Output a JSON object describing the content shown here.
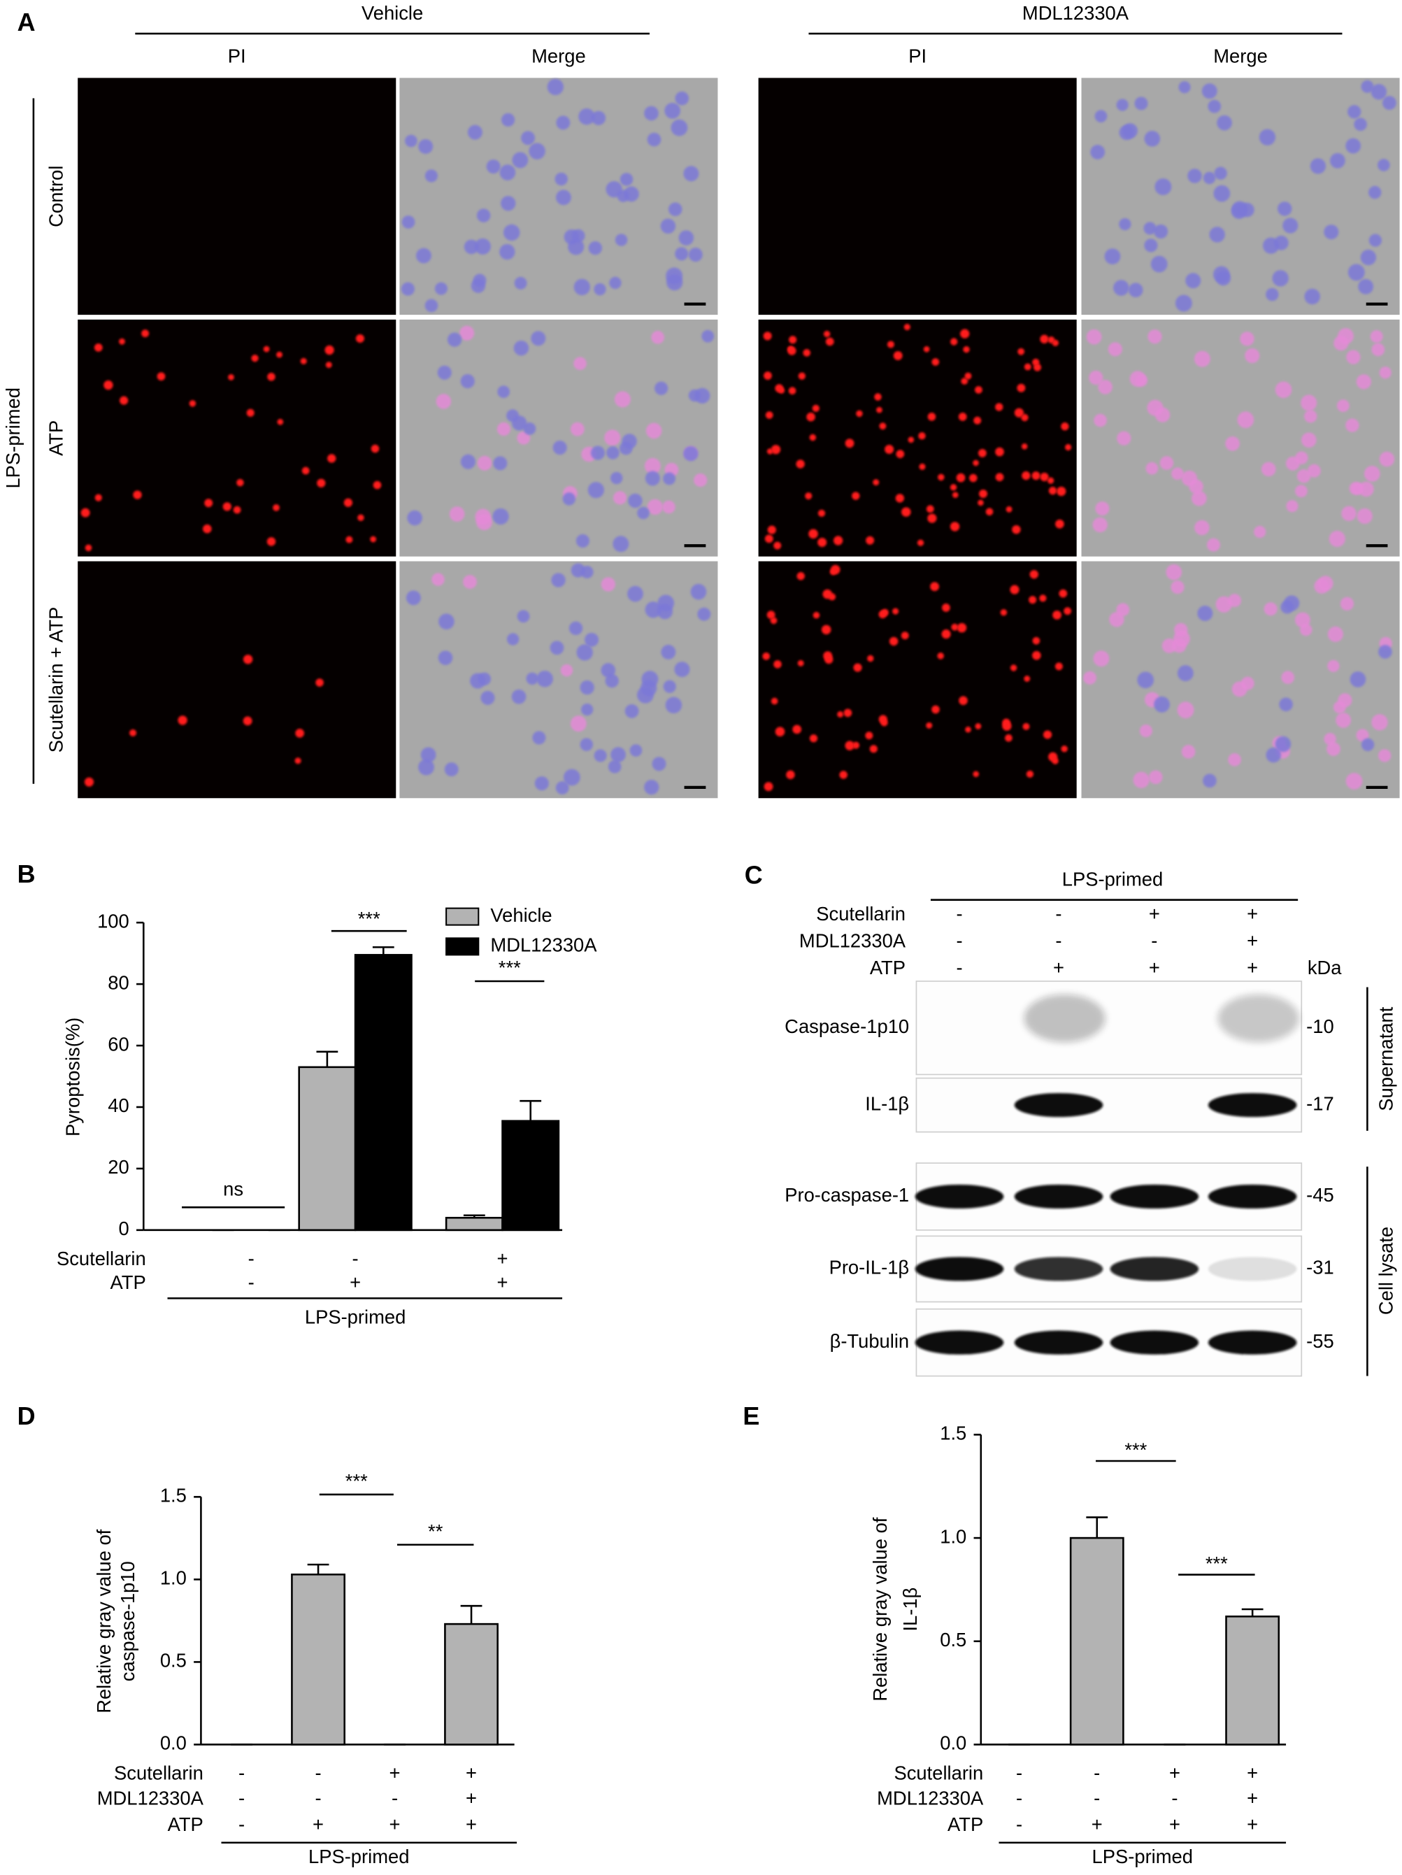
{
  "panel_a": {
    "label": "A",
    "groups": [
      {
        "title": "Vehicle",
        "columns": [
          "PI",
          "Merge"
        ]
      },
      {
        "title": "MDL12330A",
        "columns": [
          "PI",
          "Merge"
        ]
      }
    ],
    "rows": [
      "Control",
      "ATP",
      "Scutellarin + ATP"
    ],
    "row_group": "LPS-primed"
  },
  "panel_c": {
    "label": "C",
    "group_label": "LPS-primed",
    "treatments": [
      {
        "name": "Scutellarin",
        "signs": [
          "-",
          "-",
          "+",
          "+"
        ]
      },
      {
        "name": "MDL12330A",
        "signs": [
          "-",
          "-",
          "-",
          "+"
        ]
      },
      {
        "name": "ATP",
        "signs": [
          "-",
          "+",
          "+",
          "+"
        ]
      }
    ],
    "unit": "kDa",
    "blots": [
      {
        "name": "Caspase-1p10",
        "size": "-10"
      },
      {
        "name": "IL-1β",
        "size": "-17"
      },
      {
        "name": "Pro-caspase-1",
        "size": "-45"
      },
      {
        "name": "Pro-IL-1β",
        "size": "-31"
      },
      {
        "name": "β-Tubulin",
        "size": "-55"
      }
    ],
    "fractions": [
      "Supernatant",
      "Cell lysate"
    ]
  },
  "chart_data": [
    {
      "panel": "B",
      "type": "bar",
      "ylabel": "Pyroptosis(%)",
      "ylim": [
        0,
        100
      ],
      "yticks": [
        0,
        20,
        40,
        60,
        80,
        100
      ],
      "series": [
        {
          "name": "Vehicle",
          "color": "#b3b3b3",
          "values": [
            0,
            53,
            4
          ],
          "errors": [
            0,
            5,
            0.8
          ]
        },
        {
          "name": "MDL12330A",
          "color": "#000000",
          "values": [
            0,
            89.5,
            35.5
          ],
          "errors": [
            0,
            2.5,
            6.5
          ]
        }
      ],
      "treatments": [
        {
          "name": "Scutellarin",
          "signs": [
            "-",
            "-",
            "+"
          ]
        },
        {
          "name": "ATP",
          "signs": [
            "-",
            "+",
            "+"
          ]
        }
      ],
      "group_label": "LPS-primed",
      "annotations": [
        "ns",
        "***",
        "***"
      ]
    },
    {
      "panel": "D",
      "type": "bar",
      "ylabel": [
        "Relative gray value of",
        "caspase-1p10"
      ],
      "ylim": [
        0,
        1.5
      ],
      "yticks": [
        {
          "value": 0,
          "label": "0.0"
        },
        0.5,
        {
          "value": 1,
          "label": "1.0"
        },
        1.5
      ],
      "series": [
        {
          "color": "#b3b3b3",
          "values": [
            0,
            1.03,
            0,
            0.73
          ],
          "errors": [
            0,
            0.06,
            0,
            0.11
          ]
        }
      ],
      "treatments": [
        {
          "name": "Scutellarin",
          "signs": [
            "-",
            "-",
            "+",
            "+"
          ]
        },
        {
          "name": "MDL12330A",
          "signs": [
            "-",
            "-",
            "-",
            "+"
          ]
        },
        {
          "name": "ATP",
          "signs": [
            "-",
            "+",
            "+",
            "+"
          ]
        }
      ],
      "group_label": "LPS-primed",
      "annotations": [
        "***",
        "**"
      ]
    },
    {
      "panel": "E",
      "type": "bar",
      "ylabel": [
        "Relative gray value of",
        "IL-1β"
      ],
      "ylim": [
        0,
        1.5
      ],
      "yticks": [
        {
          "value": 0,
          "label": "0.0"
        },
        0.5,
        {
          "value": 1,
          "label": "1.0"
        },
        1.5
      ],
      "series": [
        {
          "color": "#b3b3b3",
          "values": [
            0,
            1.0,
            0,
            0.62
          ],
          "errors": [
            0,
            0.1,
            0,
            0.035
          ]
        }
      ],
      "treatments": [
        {
          "name": "Scutellarin",
          "signs": [
            "-",
            "-",
            "+",
            "+"
          ]
        },
        {
          "name": "MDL12330A",
          "signs": [
            "-",
            "-",
            "-",
            "+"
          ]
        },
        {
          "name": "ATP",
          "signs": [
            "-",
            "+",
            "+",
            "+"
          ]
        }
      ],
      "group_label": "LPS-primed",
      "annotations": [
        "***",
        "***"
      ]
    }
  ]
}
